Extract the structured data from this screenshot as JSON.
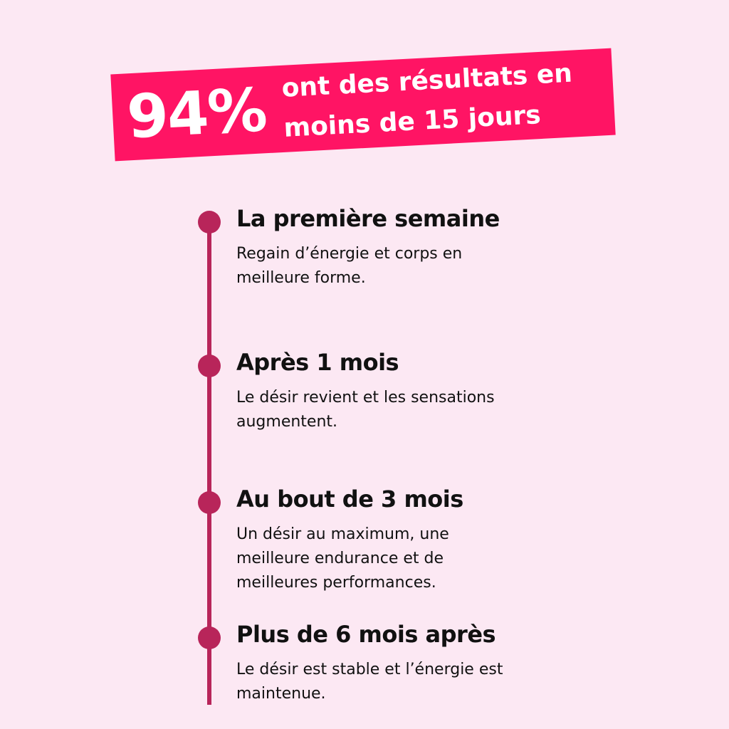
{
  "banner": {
    "stat": "94%",
    "lines": [
      "ont des résultats en",
      "moins de 15 jours"
    ]
  },
  "timeline": {
    "items": [
      {
        "title": "La première semaine",
        "lines": [
          "Regain d’énergie et corps en",
          "meilleure forme."
        ]
      },
      {
        "title": "Après 1 mois",
        "lines": [
          "Le désir revient et les sensations",
          "augmentent."
        ]
      },
      {
        "title": "Au bout de 3 mois",
        "lines": [
          "Un désir au maximum, une",
          "meilleure endurance et de",
          "meilleures performances."
        ]
      },
      {
        "title": "Plus de 6 mois après",
        "lines": [
          "Le désir est stable et l’énergie est",
          "maintenue."
        ]
      }
    ]
  }
}
